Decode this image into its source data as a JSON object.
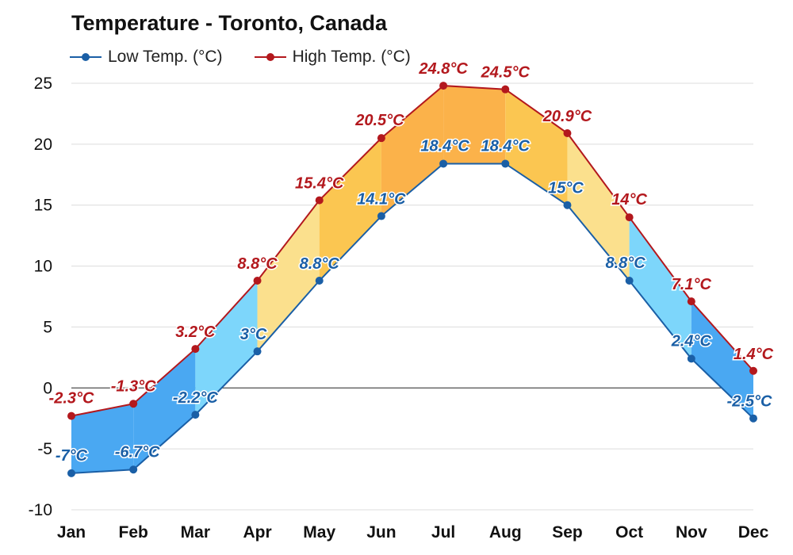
{
  "chart_data": {
    "type": "line",
    "title": "Temperature - Toronto, Canada",
    "categories": [
      "Jan",
      "Feb",
      "Mar",
      "Apr",
      "May",
      "Jun",
      "Jul",
      "Aug",
      "Sep",
      "Oct",
      "Nov",
      "Dec"
    ],
    "series": [
      {
        "name": "Low Temp. (°C)",
        "color": "#1a5fa6",
        "values": [
          -7,
          -6.7,
          -2.2,
          3,
          8.8,
          14.1,
          18.4,
          18.4,
          15,
          8.8,
          2.4,
          -2.5
        ],
        "labels": [
          "-7°C",
          "-6.7°C",
          "-2.2°C",
          "3°C",
          "8.8°C",
          "14.1°C",
          "18.4°C",
          "18.4°C",
          "15°C",
          "8.8°C",
          "2.4°C",
          "-2.5°C"
        ]
      },
      {
        "name": "High Temp. (°C)",
        "color": "#b3181d",
        "values": [
          -2.3,
          -1.3,
          3.2,
          8.8,
          15.4,
          20.5,
          24.8,
          24.5,
          20.9,
          14,
          7.1,
          1.4
        ],
        "labels": [
          "-2.3°C",
          "-1.3°C",
          "3.2°C",
          "8.8°C",
          "15.4°C",
          "20.5°C",
          "24.8°C",
          "24.5°C",
          "20.9°C",
          "14°C",
          "7.1°C",
          "1.4°C"
        ]
      }
    ],
    "ylim": [
      -10,
      25
    ],
    "yticks": [
      -10,
      -5,
      0,
      5,
      10,
      15,
      20,
      25
    ],
    "grid": true,
    "legend_position": "top-left",
    "band_colors": {
      "Jan": "#4aa8f2",
      "Feb": "#4aa8f2",
      "Mar": "#7dd6fb",
      "Apr": "#fbe08d",
      "May": "#fbc651",
      "Jun": "#fbb24a",
      "Jul": "#fbb24a",
      "Aug": "#fbc651",
      "Sep": "#fbe08d",
      "Oct": "#7dd6fb",
      "Nov": "#4aa8f2"
    }
  }
}
